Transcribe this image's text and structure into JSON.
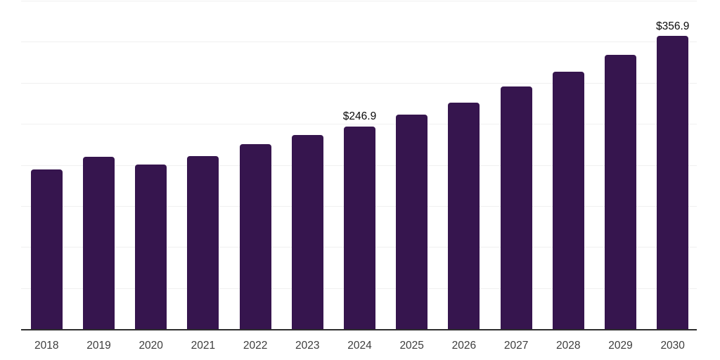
{
  "chart_data": {
    "type": "bar",
    "title": "",
    "categories": [
      "2018",
      "2019",
      "2020",
      "2021",
      "2022",
      "2023",
      "2024",
      "2025",
      "2026",
      "2027",
      "2028",
      "2029",
      "2030"
    ],
    "values": [
      194.8,
      210.0,
      200.3,
      210.3,
      225.0,
      236.4,
      246.9,
      261.0,
      276.1,
      295.3,
      313.9,
      333.9,
      356.9
    ],
    "data_labels": [
      {
        "category": "2024",
        "text": "$246.9"
      },
      {
        "category": "2030",
        "text": "$356.9"
      }
    ],
    "xlabel": "",
    "ylabel": "",
    "ylim": [
      0,
      400
    ],
    "gridline_step": 50,
    "grid": true,
    "legend": "none",
    "colors": {
      "bar": "#36154e",
      "gridline": "#f0f0f0",
      "axis_line": "#2e2e2e",
      "tick_label": "#3d3d3d",
      "data_label": "#0a0a0a",
      "background": "#ffffff"
    }
  }
}
